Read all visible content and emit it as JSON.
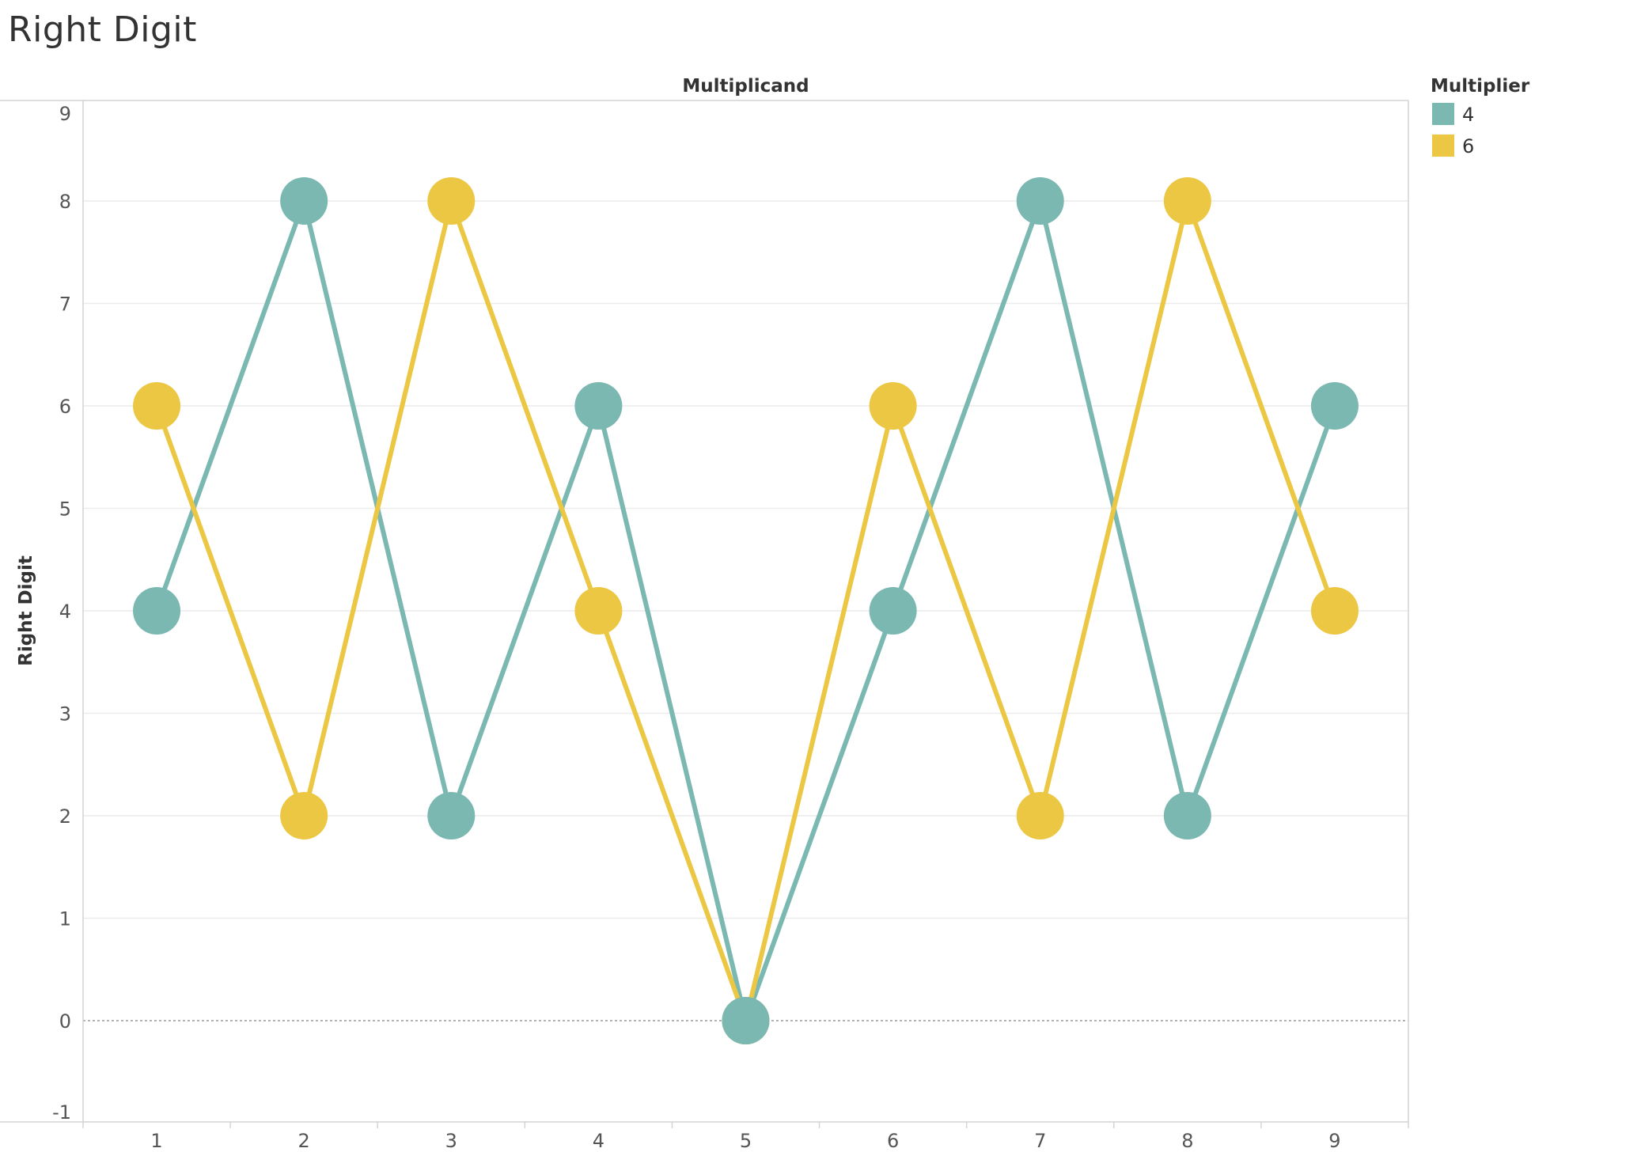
{
  "page": {
    "title": "Right Digit"
  },
  "chart_data": {
    "type": "line",
    "title": "Right Digit",
    "xlabel": "Multiplicand",
    "ylabel": "Right Digit",
    "x": [
      1,
      2,
      3,
      4,
      5,
      6,
      7,
      8,
      9
    ],
    "xticks": [
      "1",
      "2",
      "3",
      "4",
      "5",
      "6",
      "7",
      "8",
      "9"
    ],
    "yticks": [
      "-1",
      "0",
      "1",
      "2",
      "3",
      "4",
      "5",
      "6",
      "7",
      "8",
      "9"
    ],
    "ylim": [
      -1,
      9
    ],
    "grid": true,
    "zero_line": "dotted",
    "markers": "circle",
    "legend": {
      "title": "Multiplier",
      "position": "right"
    },
    "series": [
      {
        "name": "4",
        "color": "#7ab8b1",
        "values": [
          4,
          8,
          2,
          6,
          0,
          4,
          8,
          2,
          6
        ]
      },
      {
        "name": "6",
        "color": "#ecc744",
        "values": [
          6,
          2,
          8,
          4,
          0,
          6,
          2,
          8,
          4
        ]
      }
    ]
  }
}
